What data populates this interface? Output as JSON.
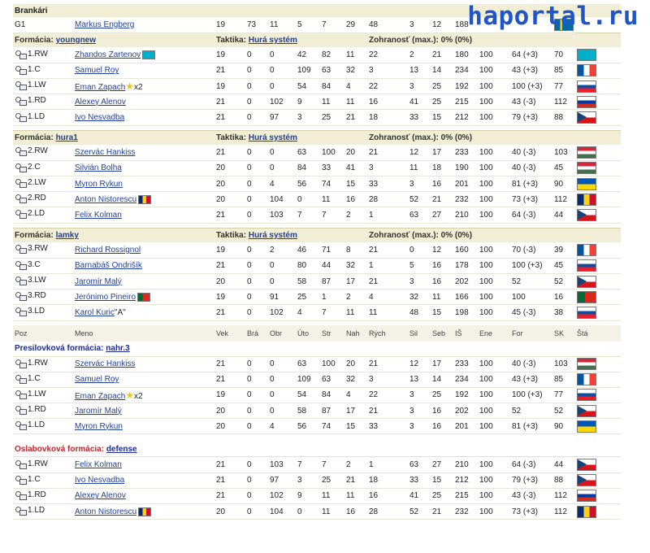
{
  "watermark": "haportal.ru",
  "goalies": {
    "section_label": "Brankári",
    "row": {
      "pos": "G1",
      "name": "Markus Engberg",
      "vals": [
        "19",
        "73",
        "11",
        "5",
        "7",
        "29",
        "48",
        "3",
        "12",
        "188"
      ]
    }
  },
  "lines": [
    {
      "form_label": "Formácia:",
      "form_name": "youngnew",
      "tactic_label": "Taktika:",
      "tactic_name": "Hurá systém",
      "chem": "Zohranosť (max.): 0% (0%)",
      "players": [
        {
          "pos": "1.RW",
          "name": "Zhandos Zartenov",
          "flag_after": "kz",
          "vek": "19",
          "bra": "0",
          "obr": "0",
          "uto": "42",
          "str": "82",
          "nah": "11",
          "rych": "22",
          "sil": "2",
          "seb": "21",
          "is": "180",
          "ene": "100",
          "for": "64 (+3)",
          "sk": "70",
          "flag": "kz"
        },
        {
          "pos": "1.C",
          "name": "Samuel Roy",
          "vek": "21",
          "bra": "0",
          "obr": "0",
          "uto": "109",
          "str": "63",
          "nah": "32",
          "rych": "3",
          "sil": "13",
          "seb": "14",
          "is": "234",
          "ene": "100",
          "for": "43 (+3)",
          "sk": "85",
          "flag": "fr"
        },
        {
          "pos": "1.LW",
          "name": "Eman Zapach",
          "extra": "x2",
          "vek": "19",
          "bra": "0",
          "obr": "0",
          "uto": "54",
          "str": "84",
          "nah": "4",
          "rych": "22",
          "sil": "3",
          "seb": "25",
          "is": "192",
          "ene": "100",
          "for": "100 (+3)",
          "sk": "77",
          "flag": "sk"
        },
        {
          "pos": "1.RD",
          "name": "Alexey Alenov",
          "vek": "21",
          "bra": "0",
          "obr": "102",
          "uto": "9",
          "str": "11",
          "nah": "11",
          "rych": "16",
          "sil": "41",
          "seb": "25",
          "is": "215",
          "ene": "100",
          "for": "43 (-3)",
          "sk": "112",
          "flag": "ru"
        },
        {
          "pos": "1.LD",
          "name": "Ivo Nesvadba",
          "vek": "21",
          "bra": "0",
          "obr": "97",
          "uto": "3",
          "str": "25",
          "nah": "21",
          "rych": "18",
          "sil": "33",
          "seb": "15",
          "is": "212",
          "ene": "100",
          "for": "79 (+3)",
          "sk": "88",
          "flag": "cz"
        }
      ]
    },
    {
      "form_label": "Formácia:",
      "form_name": "hura1",
      "tactic_label": "Taktika:",
      "tactic_name": "Hurá systém",
      "chem": "Zohranosť (max.): 0% (0%)",
      "players": [
        {
          "pos": "2.RW",
          "name": "Szervác Hankiss",
          "vek": "21",
          "bra": "0",
          "obr": "0",
          "uto": "63",
          "str": "100",
          "nah": "20",
          "rych": "21",
          "sil": "12",
          "seb": "17",
          "is": "233",
          "ene": "100",
          "for": "40 (-3)",
          "sk": "103",
          "flag": "hu"
        },
        {
          "pos": "2.C",
          "name": "Silvián Bolha",
          "vek": "20",
          "bra": "0",
          "obr": "0",
          "uto": "84",
          "str": "33",
          "nah": "41",
          "rych": "3",
          "sil": "11",
          "seb": "18",
          "is": "190",
          "ene": "100",
          "for": "40 (-3)",
          "sk": "45",
          "flag": "hu"
        },
        {
          "pos": "2.LW",
          "name": "Myron Rykun",
          "vek": "20",
          "bra": "0",
          "obr": "4",
          "uto": "56",
          "str": "74",
          "nah": "15",
          "rych": "33",
          "sil": "3",
          "seb": "16",
          "is": "201",
          "ene": "100",
          "for": "81 (+3)",
          "sk": "90",
          "flag": "ua"
        },
        {
          "pos": "2.RD",
          "name": "Anton Nistorescu",
          "flag_after": "ro",
          "vek": "20",
          "bra": "0",
          "obr": "104",
          "uto": "0",
          "str": "11",
          "nah": "16",
          "rych": "28",
          "sil": "52",
          "seb": "21",
          "is": "232",
          "ene": "100",
          "for": "73 (+3)",
          "sk": "112",
          "flag": "ro"
        },
        {
          "pos": "2.LD",
          "name": "Felix Kolman",
          "vek": "21",
          "bra": "0",
          "obr": "103",
          "uto": "7",
          "str": "7",
          "nah": "2",
          "rych": "1",
          "sil": "63",
          "seb": "27",
          "is": "210",
          "ene": "100",
          "for": "64 (-3)",
          "sk": "44",
          "flag": "cz"
        }
      ]
    },
    {
      "form_label": "Formácia:",
      "form_name": "lamky",
      "tactic_label": "Taktika:",
      "tactic_name": "Hurá systém",
      "chem": "Zohranosť (max.): 0% (0%)",
      "players": [
        {
          "pos": "3.RW",
          "name": "Richard Rossignol",
          "vek": "19",
          "bra": "0",
          "obr": "2",
          "uto": "46",
          "str": "71",
          "nah": "8",
          "rych": "21",
          "sil": "0",
          "seb": "12",
          "is": "160",
          "ene": "100",
          "for": "70 (-3)",
          "sk": "39",
          "flag": "fr"
        },
        {
          "pos": "3.C",
          "name": "Barnabáš Ondrišík",
          "vek": "21",
          "bra": "0",
          "obr": "0",
          "uto": "80",
          "str": "44",
          "nah": "32",
          "rych": "1",
          "sil": "5",
          "seb": "16",
          "is": "178",
          "ene": "100",
          "for": "100 (+3)",
          "sk": "45",
          "flag": "sk"
        },
        {
          "pos": "3.LW",
          "name": "Jaromír Malý",
          "vek": "20",
          "bra": "0",
          "obr": "0",
          "uto": "58",
          "str": "87",
          "nah": "17",
          "rych": "21",
          "sil": "3",
          "seb": "16",
          "is": "202",
          "ene": "100",
          "for": "52",
          "sk": "52",
          "flag": "cz"
        },
        {
          "pos": "3.RD",
          "name": "Jerónimo Pineiro",
          "flag_after": "pt",
          "vek": "19",
          "bra": "0",
          "obr": "91",
          "uto": "25",
          "str": "1",
          "nah": "2",
          "rych": "4",
          "sil": "32",
          "seb": "11",
          "is": "166",
          "ene": "100",
          "for": "100",
          "sk": "16",
          "flag": "pt"
        },
        {
          "pos": "3.LD",
          "name": "Karol Kuric",
          "extra": "\"A\"",
          "vek": "21",
          "bra": "0",
          "obr": "102",
          "uto": "4",
          "str": "7",
          "nah": "11",
          "rych": "11",
          "sil": "48",
          "seb": "15",
          "is": "198",
          "ene": "100",
          "for": "45 (-3)",
          "sk": "38",
          "flag": "sk"
        }
      ]
    }
  ],
  "columns": [
    "Poz",
    "Meno",
    "Vek",
    "Brá",
    "Obr",
    "Úto",
    "Str",
    "Nah",
    "Rých",
    "Sil",
    "Seb",
    "IŠ",
    "Ene",
    "For",
    "SK",
    "Štá"
  ],
  "special": [
    {
      "label": "Presilovková formácia:",
      "name": "nahr.3",
      "color": "blue",
      "players": [
        {
          "pos": "1.RW",
          "name": "Szervác Hankiss",
          "vek": "21",
          "bra": "0",
          "obr": "0",
          "uto": "63",
          "str": "100",
          "nah": "20",
          "rych": "21",
          "sil": "12",
          "seb": "17",
          "is": "233",
          "ene": "100",
          "for": "40 (-3)",
          "sk": "103",
          "flag": "hu"
        },
        {
          "pos": "1.C",
          "name": "Samuel Roy",
          "vek": "21",
          "bra": "0",
          "obr": "0",
          "uto": "109",
          "str": "63",
          "nah": "32",
          "rych": "3",
          "sil": "13",
          "seb": "14",
          "is": "234",
          "ene": "100",
          "for": "43 (+3)",
          "sk": "85",
          "flag": "fr"
        },
        {
          "pos": "1.LW",
          "name": "Eman Zapach",
          "extra": "x2",
          "vek": "19",
          "bra": "0",
          "obr": "0",
          "uto": "54",
          "str": "84",
          "nah": "4",
          "rych": "22",
          "sil": "3",
          "seb": "25",
          "is": "192",
          "ene": "100",
          "for": "100 (+3)",
          "sk": "77",
          "flag": "sk"
        },
        {
          "pos": "1.RD",
          "name": "Jaromír Malý",
          "vek": "20",
          "bra": "0",
          "obr": "0",
          "uto": "58",
          "str": "87",
          "nah": "17",
          "rych": "21",
          "sil": "3",
          "seb": "16",
          "is": "202",
          "ene": "100",
          "for": "52",
          "sk": "52",
          "flag": "cz"
        },
        {
          "pos": "1.LD",
          "name": "Myron Rykun",
          "vek": "20",
          "bra": "0",
          "obr": "4",
          "uto": "56",
          "str": "74",
          "nah": "15",
          "rych": "33",
          "sil": "3",
          "seb": "16",
          "is": "201",
          "ene": "100",
          "for": "81 (+3)",
          "sk": "90",
          "flag": "ua"
        }
      ]
    },
    {
      "label": "Oslabovková formácia:",
      "name": "defense",
      "color": "red",
      "players": [
        {
          "pos": "1.RW",
          "name": "Felix Kolman",
          "vek": "21",
          "bra": "0",
          "obr": "103",
          "uto": "7",
          "str": "7",
          "nah": "2",
          "rych": "1",
          "sil": "63",
          "seb": "27",
          "is": "210",
          "ene": "100",
          "for": "64 (-3)",
          "sk": "44",
          "flag": "cz"
        },
        {
          "pos": "1.C",
          "name": "Ivo Nesvadba",
          "vek": "21",
          "bra": "0",
          "obr": "97",
          "uto": "3",
          "str": "25",
          "nah": "21",
          "rych": "18",
          "sil": "33",
          "seb": "15",
          "is": "212",
          "ene": "100",
          "for": "79 (+3)",
          "sk": "88",
          "flag": "cz"
        },
        {
          "pos": "1.RD",
          "name": "Alexey Alenov",
          "vek": "21",
          "bra": "0",
          "obr": "102",
          "uto": "9",
          "str": "11",
          "nah": "11",
          "rych": "16",
          "sil": "41",
          "seb": "25",
          "is": "215",
          "ene": "100",
          "for": "43 (-3)",
          "sk": "112",
          "flag": "ru"
        },
        {
          "pos": "1.LD",
          "name": "Anton Nistorescu",
          "flag_after": "ro",
          "vek": "20",
          "bra": "0",
          "obr": "104",
          "uto": "0",
          "str": "11",
          "nah": "16",
          "rych": "28",
          "sil": "52",
          "seb": "21",
          "is": "232",
          "ene": "100",
          "for": "73 (+3)",
          "sk": "112",
          "flag": "ro"
        }
      ]
    }
  ]
}
